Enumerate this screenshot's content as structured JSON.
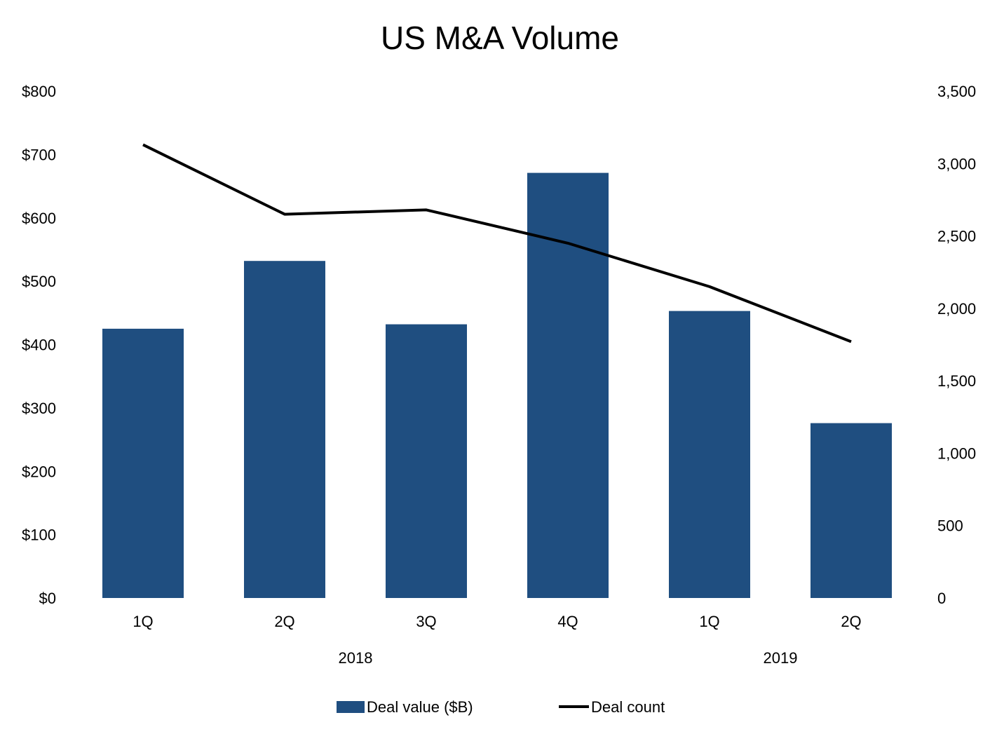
{
  "chart_data": {
    "type": "bar",
    "title": "US M&A Volume",
    "categories": [
      "1Q",
      "2Q",
      "3Q",
      "4Q",
      "1Q",
      "2Q"
    ],
    "category_groups": [
      {
        "label": "2018",
        "categories": [
          0,
          1,
          2,
          3
        ]
      },
      {
        "label": "2019",
        "categories": [
          4,
          5
        ]
      }
    ],
    "series": [
      {
        "name": "Deal value ($B)",
        "type": "bar",
        "axis": "left",
        "color": "#1f4e80",
        "values": [
          425,
          532,
          432,
          671,
          453,
          276
        ]
      },
      {
        "name": "Deal count",
        "type": "line",
        "axis": "right",
        "color": "#000000",
        "values": [
          3130,
          2650,
          2680,
          2450,
          2150,
          1770
        ]
      }
    ],
    "y_left": {
      "min": 0,
      "max": 800,
      "step": 100,
      "ticks": [
        "$0",
        "$100",
        "$200",
        "$300",
        "$400",
        "$500",
        "$600",
        "$700",
        "$800"
      ]
    },
    "y_right": {
      "min": 0,
      "max": 3500,
      "step": 500,
      "ticks": [
        "0",
        "500",
        "1,000",
        "1,500",
        "2,000",
        "2,500",
        "3,000",
        "3,500"
      ]
    },
    "grid": false,
    "legend_position": "bottom"
  }
}
